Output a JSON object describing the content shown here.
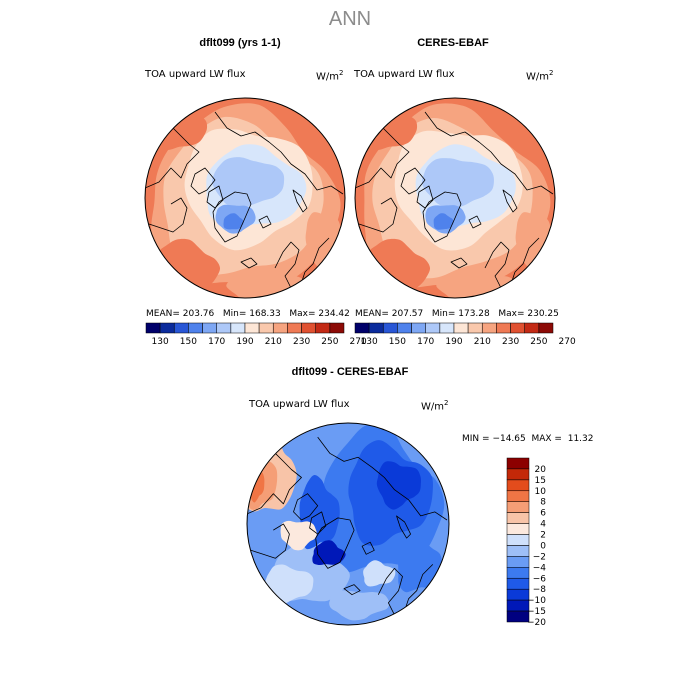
{
  "figure": {
    "title": "ANN",
    "colors": {
      "levels_abs": [
        "#00006a",
        "#0b2b9c",
        "#2856d6",
        "#4f82ec",
        "#7ea7f4",
        "#adc8f8",
        "#d7e6fb",
        "#fde6d6",
        "#f9c8ac",
        "#f6a480",
        "#ef7a55",
        "#e05131",
        "#c32a15",
        "#8c0a06"
      ],
      "levels_diff": [
        "#000080",
        "#0018b8",
        "#0a3ad8",
        "#1f5ae8",
        "#3c7af0",
        "#6a9cf4",
        "#9ebff7",
        "#cfe0fb",
        "#fce9de",
        "#f8c4a8",
        "#f59e76",
        "#f07545",
        "#e34c1c",
        "#c32808",
        "#8c0000"
      ]
    }
  },
  "chart_data": [
    {
      "type": "heatmap",
      "title": "dflt099 (yrs 1-1)",
      "variable": "TOA upward LW flux",
      "units": "W/m",
      "units_exp": "2",
      "mean_label": "MEAN=",
      "mean": "203.76",
      "min_label": "Min=",
      "min": "168.33",
      "max_label": "Max=",
      "max": "234.42",
      "colorbar_ticks": [
        "130",
        "150",
        "170",
        "190",
        "210",
        "230",
        "250",
        "270"
      ]
    },
    {
      "type": "heatmap",
      "title": "CERES-EBAF",
      "variable": "TOA upward LW flux",
      "units": "W/m",
      "units_exp": "2",
      "mean_label": "MEAN=",
      "mean": "207.57",
      "min_label": "Min=",
      "min": "173.28",
      "max_label": "Max=",
      "max": "230.25",
      "colorbar_ticks": [
        "130",
        "150",
        "170",
        "190",
        "210",
        "230",
        "250",
        "270"
      ]
    },
    {
      "type": "heatmap",
      "title": "dflt099 - CERES-EBAF",
      "variable": "TOA upward LW flux",
      "units": "W/m",
      "units_exp": "2",
      "min_label": "MIN =",
      "min": "−14.65",
      "max_label": "MAX =",
      "max": "11.32",
      "colorbar_ticks": [
        "20",
        "15",
        "10",
        "8",
        "6",
        "4",
        "2",
        "0",
        "−2",
        "−4",
        "−6",
        "−8",
        "−10",
        "−15",
        "−20"
      ]
    }
  ]
}
